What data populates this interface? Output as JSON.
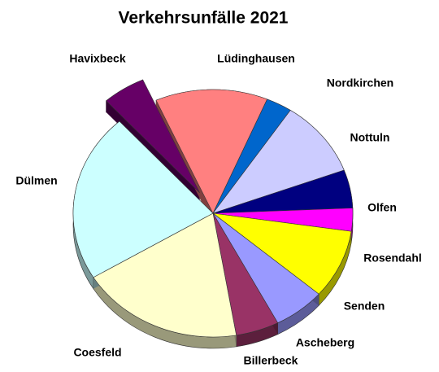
{
  "chart_data": {
    "type": "pie",
    "title": "Verkehrsunfälle 2021",
    "categories": [
      "Havixbeck",
      "Lüdinghausen",
      "Nordkirchen",
      "Nottuln",
      "Olfen",
      "Rosendahl",
      "Senden",
      "Ascheberg",
      "Billerbeck",
      "Coesfeld",
      "Dülmen"
    ],
    "values": [
      5,
      13,
      3,
      10,
      5,
      3,
      9,
      6,
      5,
      19,
      22
    ],
    "colors": [
      "#660066",
      "#ff8080",
      "#0066cc",
      "#ccccff",
      "#000080",
      "#ff00ff",
      "#ffff00",
      "#9999ff",
      "#993366",
      "#ffffcc",
      "#ccffff"
    ],
    "exploded": [
      "Havixbeck"
    ]
  }
}
